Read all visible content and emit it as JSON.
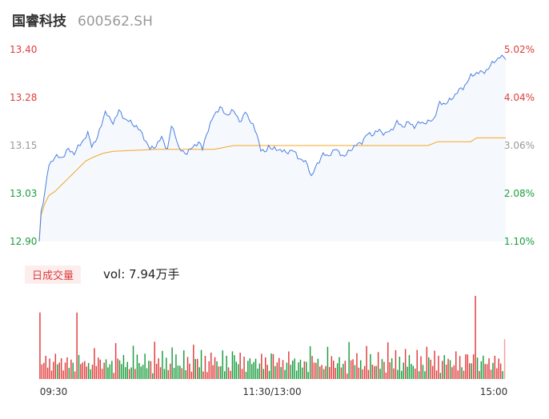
{
  "header": {
    "name": "国睿科技",
    "code": "600562.SH"
  },
  "volume": {
    "label": "日成交量",
    "value_text": "vol: 7.94万手"
  },
  "colors": {
    "price_line": "#4a7fe0",
    "avg_line": "#f5a623",
    "up": "#e03c3c",
    "down": "#1a9c3e",
    "flat": "#999999",
    "area_fill": "#f5f8fd"
  },
  "chart_data": {
    "type": "line",
    "x_ticks": [
      "09:30",
      "11:30/13:00",
      "15:00"
    ],
    "y_left": [
      "13.40",
      "13.28",
      "13.15",
      "13.03",
      "12.90"
    ],
    "y_right": [
      "5.02%",
      "4.04%",
      "3.06%",
      "2.08%",
      "1.10%"
    ],
    "ylim": [
      12.9,
      13.4
    ],
    "total_minutes": 240,
    "price_keypoints": [
      [
        0,
        12.9
      ],
      [
        1,
        12.98
      ],
      [
        3,
        13.03
      ],
      [
        5,
        13.1
      ],
      [
        8,
        13.12
      ],
      [
        12,
        13.12
      ],
      [
        15,
        13.14
      ],
      [
        18,
        13.13
      ],
      [
        22,
        13.16
      ],
      [
        25,
        13.18
      ],
      [
        27,
        13.15
      ],
      [
        30,
        13.17
      ],
      [
        34,
        13.24
      ],
      [
        36,
        13.22
      ],
      [
        38,
        13.21
      ],
      [
        41,
        13.24
      ],
      [
        44,
        13.22
      ],
      [
        47,
        13.21
      ],
      [
        50,
        13.2
      ],
      [
        53,
        13.18
      ],
      [
        55,
        13.16
      ],
      [
        57,
        13.14
      ],
      [
        60,
        13.15
      ],
      [
        63,
        13.17
      ],
      [
        66,
        13.14
      ],
      [
        68,
        13.2
      ],
      [
        70,
        13.18
      ],
      [
        72,
        13.14
      ],
      [
        75,
        13.13
      ],
      [
        78,
        13.14
      ],
      [
        82,
        13.16
      ],
      [
        84,
        13.14
      ],
      [
        86,
        13.18
      ],
      [
        90,
        13.23
      ],
      [
        93,
        13.25
      ],
      [
        96,
        13.23
      ],
      [
        100,
        13.24
      ],
      [
        104,
        13.21
      ],
      [
        106,
        13.24
      ],
      [
        108,
        13.22
      ],
      [
        110,
        13.2
      ],
      [
        112,
        13.18
      ],
      [
        114,
        13.14
      ],
      [
        116,
        13.13
      ],
      [
        118,
        13.15
      ],
      [
        120,
        13.14
      ],
      [
        122,
        13.14
      ],
      [
        124,
        13.14
      ],
      [
        127,
        13.13
      ],
      [
        130,
        13.14
      ],
      [
        133,
        13.12
      ],
      [
        136,
        13.11
      ],
      [
        138,
        13.1
      ],
      [
        140,
        13.07
      ],
      [
        142,
        13.09
      ],
      [
        144,
        13.11
      ],
      [
        146,
        13.13
      ],
      [
        148,
        13.12
      ],
      [
        150,
        13.13
      ],
      [
        152,
        13.14
      ],
      [
        155,
        13.13
      ],
      [
        157,
        13.12
      ],
      [
        160,
        13.14
      ],
      [
        163,
        13.15
      ],
      [
        166,
        13.16
      ],
      [
        169,
        13.18
      ],
      [
        172,
        13.18
      ],
      [
        175,
        13.19
      ],
      [
        178,
        13.18
      ],
      [
        181,
        13.19
      ],
      [
        184,
        13.21
      ],
      [
        187,
        13.2
      ],
      [
        190,
        13.21
      ],
      [
        193,
        13.2
      ],
      [
        196,
        13.21
      ],
      [
        200,
        13.21
      ],
      [
        203,
        13.22
      ],
      [
        206,
        13.26
      ],
      [
        209,
        13.26
      ],
      [
        212,
        13.27
      ],
      [
        215,
        13.29
      ],
      [
        218,
        13.3
      ],
      [
        222,
        13.33
      ],
      [
        225,
        13.34
      ],
      [
        228,
        13.34
      ],
      [
        231,
        13.35
      ],
      [
        234,
        13.37
      ],
      [
        237,
        13.38
      ],
      [
        240,
        13.38
      ]
    ],
    "avg_keypoints": [
      [
        0,
        12.9
      ],
      [
        1,
        12.97
      ],
      [
        3,
        13.0
      ],
      [
        5,
        13.02
      ],
      [
        8,
        13.03
      ],
      [
        12,
        13.05
      ],
      [
        16,
        13.07
      ],
      [
        20,
        13.09
      ],
      [
        24,
        13.11
      ],
      [
        28,
        13.12
      ],
      [
        33,
        13.13
      ],
      [
        38,
        13.135
      ],
      [
        60,
        13.14
      ],
      [
        80,
        13.14
      ],
      [
        90,
        13.14
      ],
      [
        100,
        13.15
      ],
      [
        120,
        13.15
      ],
      [
        130,
        13.15
      ],
      [
        200,
        13.15
      ],
      [
        205,
        13.16
      ],
      [
        222,
        13.16
      ],
      [
        225,
        13.17
      ],
      [
        240,
        13.17
      ]
    ],
    "volume_pattern": [
      0.45,
      0.3,
      0.25,
      0.2,
      0.35,
      0.15,
      0.28,
      0.12,
      0.22,
      0.4,
      0.18,
      0.3,
      0.25,
      0.16,
      0.2,
      0.35,
      0.14,
      0.28,
      0.22,
      0.1
    ]
  }
}
